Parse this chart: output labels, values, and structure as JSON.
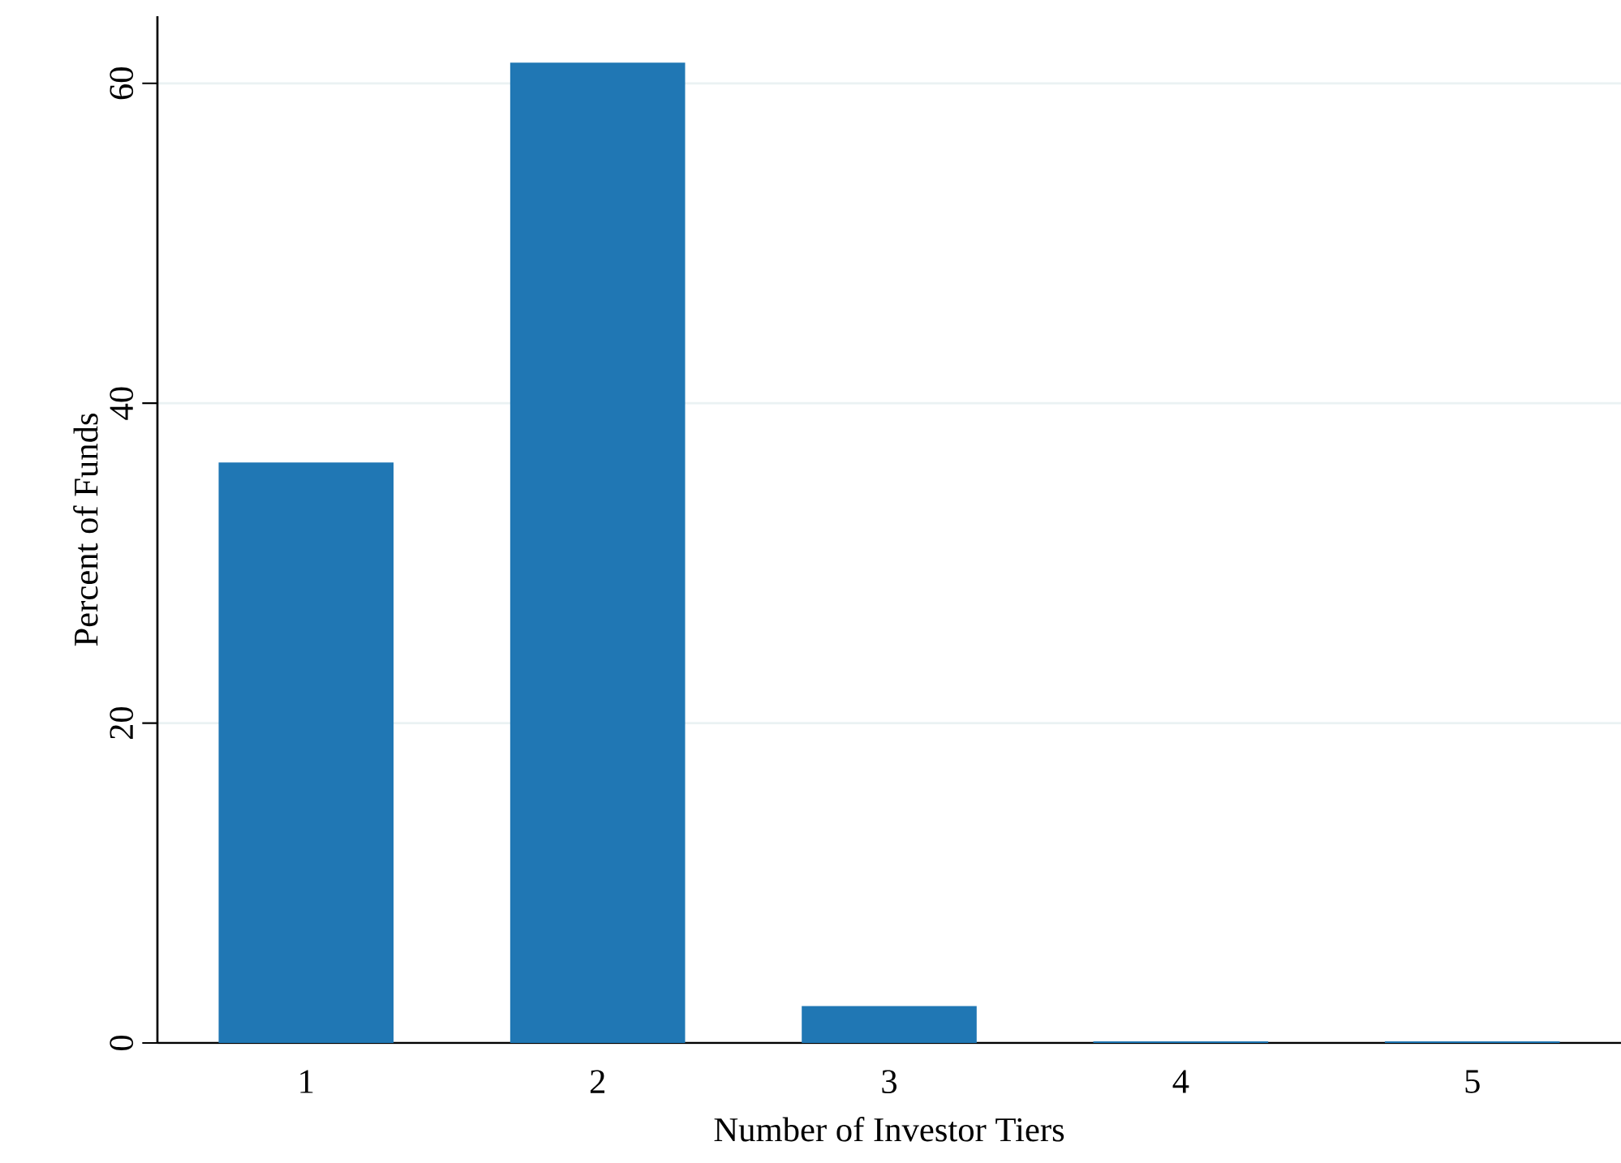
{
  "chart_data": {
    "type": "bar",
    "xlabel": "Number of Investor Tiers",
    "ylabel": "Percent of Funds",
    "categories": [
      "1",
      "2",
      "3",
      "4",
      "5"
    ],
    "values": [
      36.3,
      61.3,
      2.3,
      0.1,
      0.1
    ],
    "color": "#2077b4",
    "ylim": [
      0,
      64.2
    ],
    "yticks": [
      0,
      20,
      40,
      60
    ],
    "grid": "y"
  }
}
